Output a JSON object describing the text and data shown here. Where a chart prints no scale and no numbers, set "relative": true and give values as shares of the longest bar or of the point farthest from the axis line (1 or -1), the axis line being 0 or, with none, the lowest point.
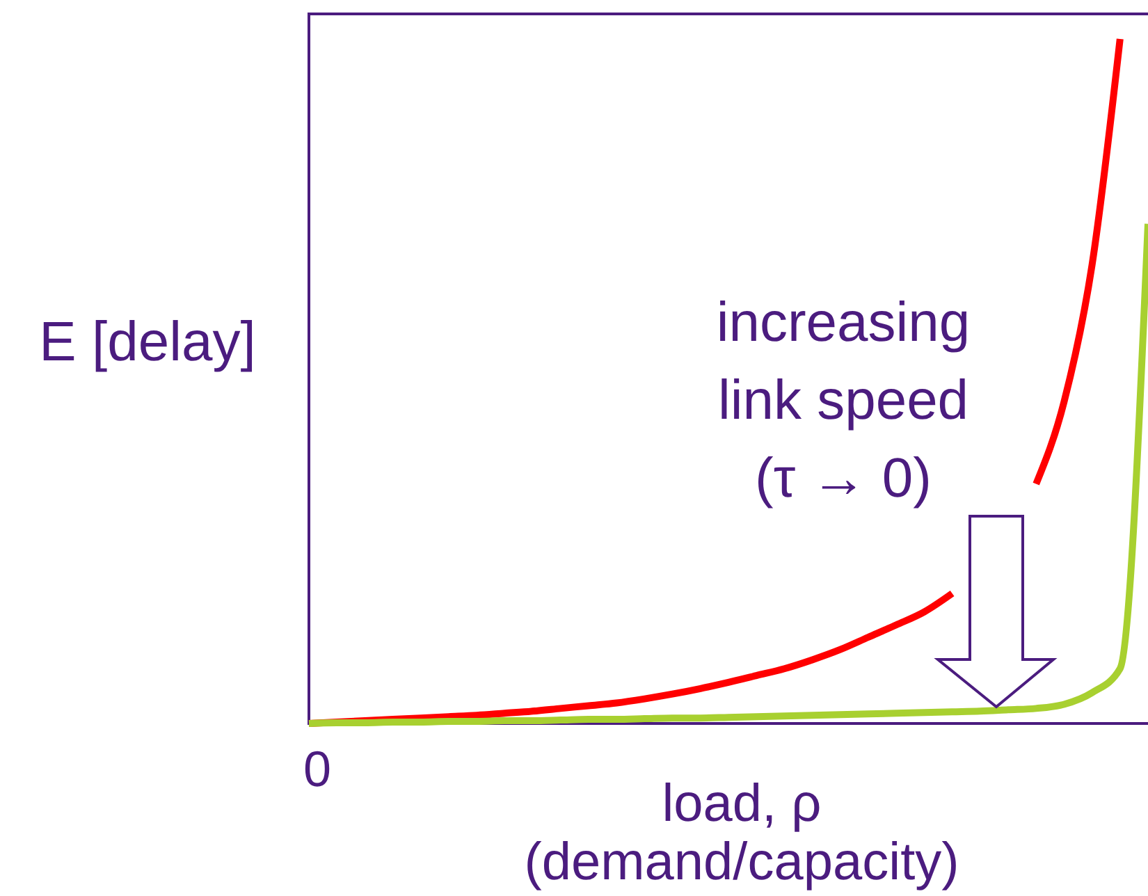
{
  "chart_data": {
    "type": "line",
    "relative": true,
    "xlabel": "load, ρ\n(demand/capacity)",
    "ylabel": "E [delay]",
    "categories": [
      null,
      null,
      null,
      null,
      null,
      null,
      null,
      null,
      null,
      null,
      null,
      null,
      null,
      null,
      null,
      null,
      null,
      null,
      null,
      null,
      null,
      null,
      null,
      null,
      null,
      null,
      null,
      null,
      null,
      null,
      null
    ],
    "series": [
      {
        "color": "#ff0000",
        "values": [
          0,
          0.002,
          0.004,
          0.006,
          0.008,
          0.01,
          0.012,
          0.015,
          0.018,
          0.022,
          0.026,
          0.03,
          0.036,
          0.043,
          0.051,
          0.06,
          0.07,
          0.08,
          0.093,
          0.108,
          0.126,
          0.144,
          0.163,
          0.19,
          null,
          null,
          0.35,
          0.47,
          0.67,
          1,
          null
        ]
      },
      {
        "color": "#a8d030",
        "values": [
          0,
          0.001,
          0.001,
          0.002,
          0.002,
          0.003,
          0.003,
          0.004,
          0.004,
          0.005,
          0.006,
          0.006,
          0.007,
          0.008,
          0.008,
          0.009,
          0.01,
          0.011,
          0.012,
          0.013,
          0.014,
          0.015,
          0.016,
          0.017,
          0.018,
          0.02,
          0.022,
          0.028,
          0.045,
          0.08,
          0.73
        ]
      }
    ],
    "annotations": [
      "increasing\nlink speed\n(τ → 0)",
      "0"
    ],
    "marker": "none",
    "line_style": "solid"
  }
}
